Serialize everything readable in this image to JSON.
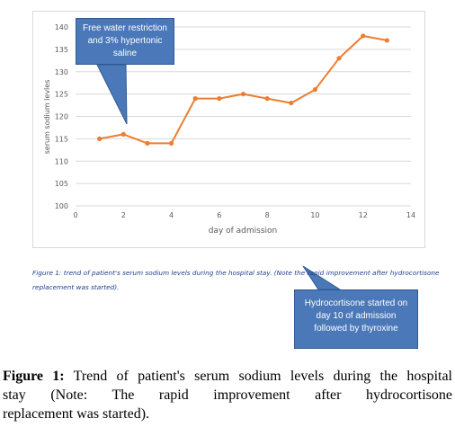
{
  "chart_data": {
    "type": "line",
    "xlabel": "day of admission",
    "ylabel": "serum sodium levles",
    "xlim": [
      0,
      14
    ],
    "ylim": [
      100,
      140
    ],
    "x_ticks": [
      "0",
      "2",
      "4",
      "6",
      "8",
      "10",
      "12",
      "14"
    ],
    "y_ticks": [
      "100",
      "105",
      "110",
      "115",
      "120",
      "125",
      "130",
      "135",
      "140"
    ],
    "grid": "horizontal",
    "series": [
      {
        "x": [
          1,
          2,
          3,
          4,
          5,
          6,
          7,
          8,
          9,
          10,
          11,
          12,
          13
        ],
        "values": [
          115,
          116,
          114,
          114,
          124,
          124,
          125,
          124,
          123,
          126,
          133,
          138,
          137
        ],
        "color": "#ed7d31"
      }
    ]
  },
  "callouts": {
    "first": "Free water restriction and 3% hypertonic saline",
    "second": "Hydrocortisone started on day 10 of admission followed by thyroxine"
  },
  "inner_caption": "Figure 1: trend of patient's serum sodium levels during the hospital stay.  (Note the rapid improvement after hydrocortisone replacement was started).",
  "caption": {
    "label": "Figure 1:",
    "line1": "Trend of patient's serum sodium levels during the hospital",
    "line2": "stay (Note: The rapid improvement after hydrocortisone",
    "line3": "replacement was started)."
  },
  "colors": {
    "series": "#ed7d31",
    "callout_fill": "#4a78b8",
    "gridline": "#d9d9d9",
    "inner_caption_text": "#1f3f8f"
  }
}
